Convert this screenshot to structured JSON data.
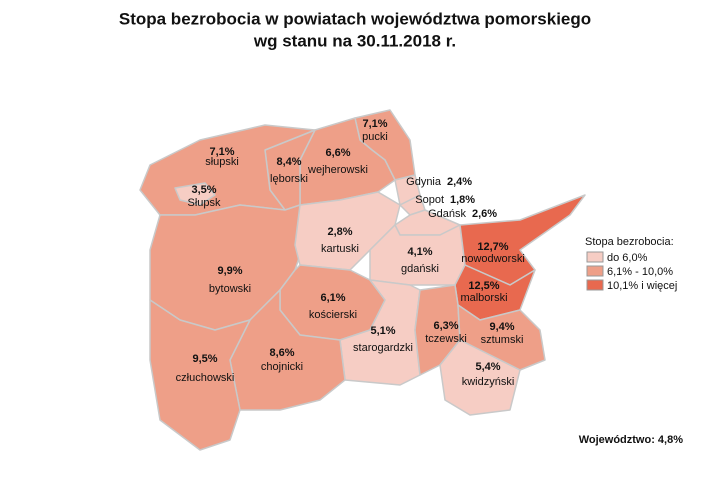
{
  "title": [
    "Stopa bezrobocia w powiatach województwa pomorskiego",
    "wg stanu na 30.11.2018 r."
  ],
  "regions": [
    {
      "name": "pucki",
      "value": "7,1%",
      "color": "#ee9f88"
    },
    {
      "name": "wejherowski",
      "value": "6,6%",
      "color": "#ee9f88"
    },
    {
      "name": "lęborski",
      "value": "8,4%",
      "color": "#ee9f88"
    },
    {
      "name": "słupski",
      "value": "7,1%",
      "color": "#ee9f88"
    },
    {
      "name": "Słupsk",
      "value": "3,5%",
      "color": "#f6cdc4"
    },
    {
      "name": "bytowski",
      "value": "9,9%",
      "color": "#ee9f88"
    },
    {
      "name": "kartuski",
      "value": "2,8%",
      "color": "#f6cdc4"
    },
    {
      "name": "Gdynia",
      "value": "2,4%",
      "color": "#f6cdc4"
    },
    {
      "name": "Sopot",
      "value": "1,8%",
      "color": "#f6cdc4"
    },
    {
      "name": "Gdańsk",
      "value": "2,6%",
      "color": "#f6cdc4"
    },
    {
      "name": "gdański",
      "value": "4,1%",
      "color": "#f6cdc4"
    },
    {
      "name": "nowodworski",
      "value": "12,7%",
      "color": "#e8694f"
    },
    {
      "name": "malborski",
      "value": "12,5%",
      "color": "#e8694f"
    },
    {
      "name": "kościerski",
      "value": "6,1%",
      "color": "#ee9f88"
    },
    {
      "name": "starogardzki",
      "value": "5,1%",
      "color": "#f6cdc4"
    },
    {
      "name": "tczewski",
      "value": "6,3%",
      "color": "#ee9f88"
    },
    {
      "name": "sztumski",
      "value": "9,4%",
      "color": "#ee9f88"
    },
    {
      "name": "kwidzyński",
      "value": "5,4%",
      "color": "#f6cdc4"
    },
    {
      "name": "chojnicki",
      "value": "8,6%",
      "color": "#ee9f88"
    },
    {
      "name": "człuchowski",
      "value": "9,5%",
      "color": "#ee9f88"
    }
  ],
  "legend": {
    "title": "Stopa bezrobocia:",
    "items": [
      {
        "label": "do 6,0%",
        "color": "#f6cdc4"
      },
      {
        "label": "6,1% - 10,0%",
        "color": "#ee9f88"
      },
      {
        "label": "10,1% i więcej",
        "color": "#e8694f"
      }
    ]
  },
  "footer": "Województwo: 4,8%"
}
